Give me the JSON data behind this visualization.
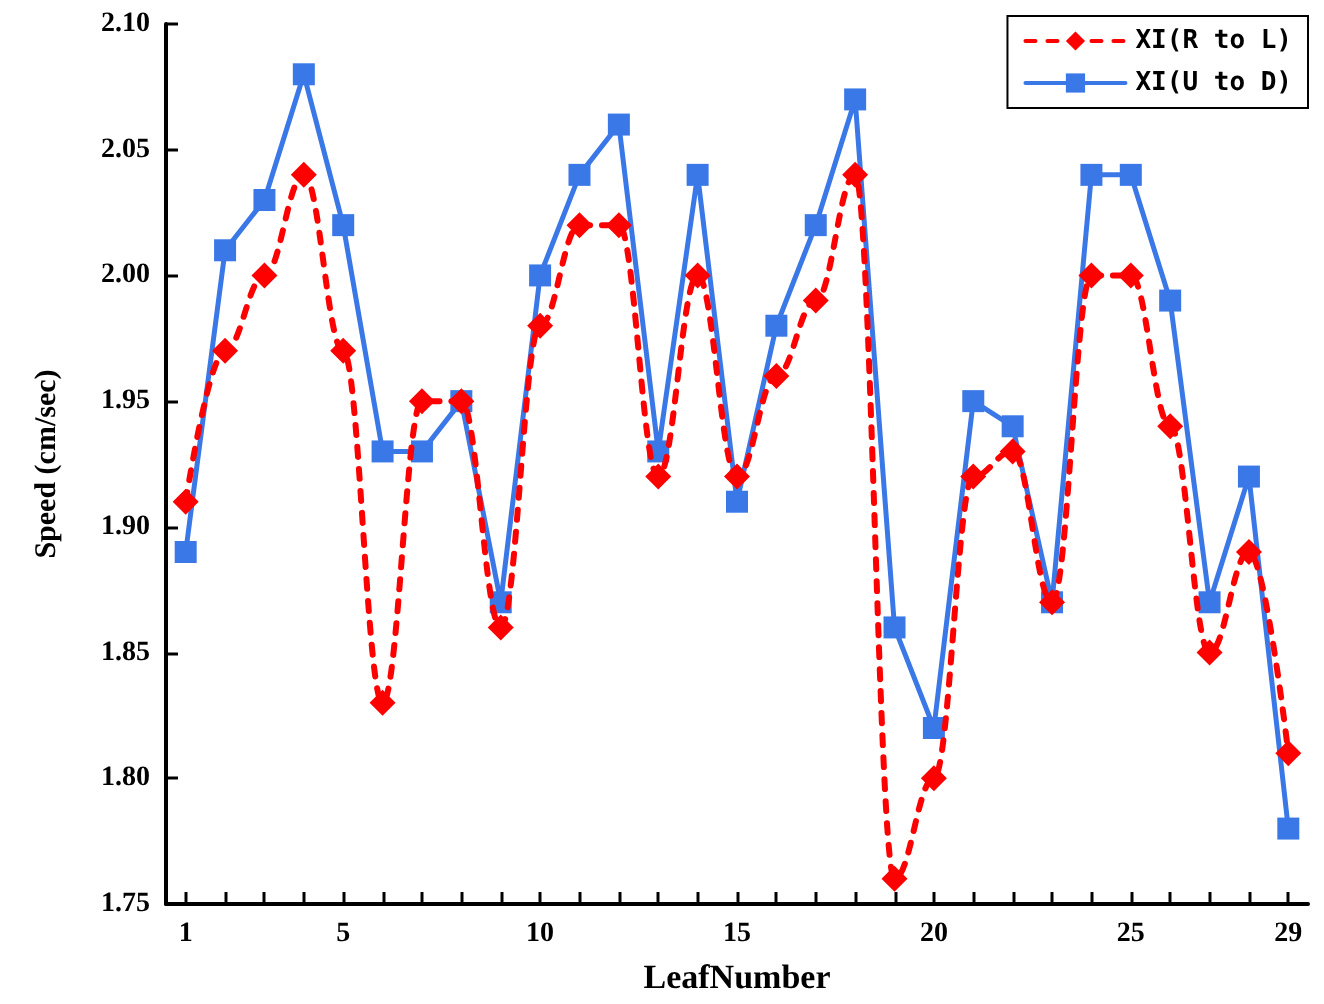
{
  "chart_data": {
    "type": "line",
    "xlabel": "LeafNumber",
    "ylabel": "Speed (cm/sec)",
    "x": [
      1,
      2,
      3,
      4,
      5,
      6,
      7,
      8,
      9,
      10,
      11,
      12,
      13,
      14,
      15,
      16,
      17,
      18,
      19,
      20,
      21,
      22,
      23,
      24,
      25,
      26,
      27,
      28,
      29
    ],
    "series": [
      {
        "name": "XI(R to L)",
        "color": "#ff0000",
        "marker": "diamond",
        "line_style": "dashed",
        "values": [
          1.91,
          1.97,
          2.0,
          2.04,
          1.97,
          1.83,
          1.95,
          1.95,
          1.86,
          1.98,
          2.02,
          2.02,
          1.92,
          2.0,
          1.92,
          1.96,
          1.99,
          2.04,
          1.76,
          1.8,
          1.92,
          1.93,
          1.87,
          2.0,
          2.0,
          1.94,
          1.85,
          1.89,
          1.81
        ]
      },
      {
        "name": "XI(U to D)",
        "color": "#3b78e7",
        "marker": "square",
        "line_style": "solid",
        "values": [
          1.89,
          2.01,
          2.03,
          2.08,
          2.02,
          1.93,
          1.93,
          1.95,
          1.87,
          2.0,
          2.04,
          2.06,
          1.93,
          2.04,
          1.91,
          1.98,
          2.02,
          2.07,
          1.86,
          1.82,
          1.95,
          1.94,
          1.87,
          2.04,
          2.04,
          1.99,
          1.87,
          1.92,
          1.78
        ]
      }
    ],
    "xlim": [
      0.5,
      29.5
    ],
    "xticks": [
      1,
      {
        "value": 2,
        "label": null
      },
      {
        "value": 3,
        "label": null
      },
      {
        "value": 4,
        "label": null
      },
      5,
      {
        "value": 6,
        "label": null
      },
      {
        "value": 7,
        "label": null
      },
      {
        "value": 8,
        "label": null
      },
      {
        "value": 9,
        "label": null
      },
      10,
      {
        "value": 11,
        "label": null
      },
      {
        "value": 12,
        "label": null
      },
      {
        "value": 13,
        "label": null
      },
      {
        "value": 14,
        "label": null
      },
      15,
      {
        "value": 16,
        "label": null
      },
      {
        "value": 17,
        "label": null
      },
      {
        "value": 18,
        "label": null
      },
      {
        "value": 19,
        "label": null
      },
      20,
      {
        "value": 21,
        "label": null
      },
      {
        "value": 22,
        "label": null
      },
      {
        "value": 23,
        "label": null
      },
      {
        "value": 24,
        "label": null
      },
      25,
      {
        "value": 26,
        "label": null
      },
      {
        "value": 27,
        "label": null
      },
      {
        "value": 28,
        "label": null
      },
      29
    ],
    "ylim": [
      1.75,
      2.1
    ],
    "yticks": [
      {
        "value": 1.75,
        "label": "1.75"
      },
      {
        "value": 1.8,
        "label": "1.80"
      },
      {
        "value": 1.85,
        "label": "1.85"
      },
      {
        "value": 1.9,
        "label": "1.90"
      },
      {
        "value": 1.95,
        "label": "1.95"
      },
      {
        "value": 2.0,
        "label": "2.00"
      },
      {
        "value": 2.05,
        "label": "2.05"
      },
      {
        "value": 2.1,
        "label": "2.10"
      }
    ],
    "grid": false,
    "legend": "top right"
  }
}
